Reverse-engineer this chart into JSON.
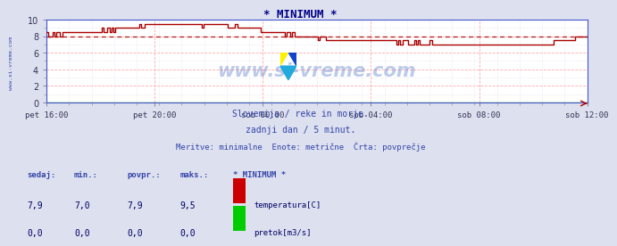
{
  "title": "* MINIMUM *",
  "bg_color": "#dde0ee",
  "plot_bg_color": "#ffffff",
  "grid_color_major": "#ffaaaa",
  "grid_color_minor": "#ddddee",
  "x_labels": [
    "pet 16:00",
    "pet 20:00",
    "sob 00:00",
    "sob 04:00",
    "sob 08:00",
    "sob 12:00"
  ],
  "ylim": [
    0,
    10
  ],
  "yticks": [
    0,
    2,
    4,
    6,
    8,
    10
  ],
  "temp_color": "#aa0000",
  "flow_color": "#00aa00",
  "avg_line_color": "#aa0000",
  "avg_value": 7.9,
  "watermark": "www.si-vreme.com",
  "watermark_color": "#2255bb",
  "subtitle1": "Slovenija / reke in morje.",
  "subtitle2": "zadnji dan / 5 minut.",
  "subtitle3": "Meritve: minimalne  Enote: metrične  Črta: povprečje",
  "subtitle_color": "#3344aa",
  "left_label": "www.si-vreme.com",
  "left_label_color": "#3344aa",
  "table_header_color": "#3344aa",
  "table_headers": [
    "sedaj:",
    "min.:",
    "povpr.:",
    "maks.:",
    "* MINIMUM *"
  ],
  "table_row1": [
    "7,9",
    "7,0",
    "7,9",
    "9,5"
  ],
  "table_row2": [
    "0,0",
    "0,0",
    "0,0",
    "0,0"
  ],
  "table_label1": "temperatura[C]",
  "table_label2": "pretok[m3/s]",
  "legend_color1": "#cc0000",
  "legend_color2": "#00cc00",
  "axis_color": "#4455cc",
  "tick_color": "#333355"
}
